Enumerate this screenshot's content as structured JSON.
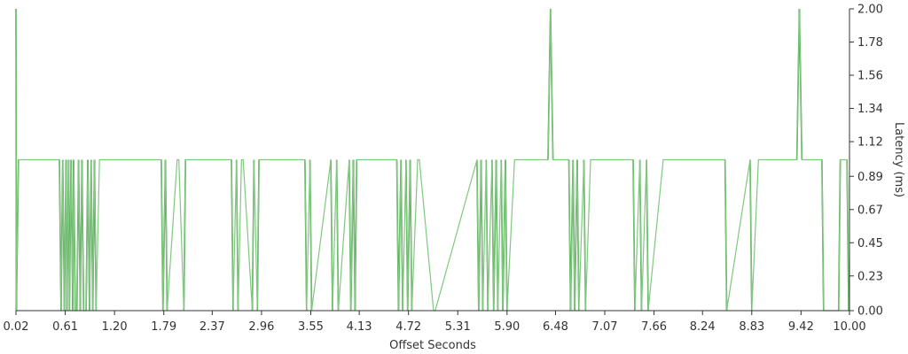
{
  "chart_data": {
    "type": "line",
    "title": "",
    "xlabel": "Offset Seconds",
    "ylabel": "Latency (ms)",
    "xlim": [
      0.02,
      10.0
    ],
    "ylim": [
      0.0,
      2.0
    ],
    "x_ticks": [
      "0.02",
      "0.61",
      "1.20",
      "1.79",
      "2.37",
      "2.96",
      "3.55",
      "4.13",
      "4.72",
      "5.31",
      "5.90",
      "6.48",
      "7.07",
      "7.66",
      "8.24",
      "8.83",
      "9.42",
      "10.00"
    ],
    "y_ticks": [
      "0.00",
      "0.23",
      "0.45",
      "0.67",
      "0.89",
      "1.12",
      "1.34",
      "1.56",
      "1.78",
      "2.00"
    ],
    "y_axis_side": "right",
    "grid": false,
    "legend": "none",
    "colors": {
      "line": "#7fc97f",
      "spike": "#2e8b2e",
      "axis": "#333333"
    },
    "series": [
      {
        "x": [
          0.02,
          0.025,
          0.05,
          0.08,
          0.54,
          0.56,
          0.58,
          0.6,
          0.62,
          0.63,
          0.65,
          0.66,
          0.68,
          0.7,
          0.71,
          0.73,
          0.75,
          0.77,
          0.79,
          0.81,
          0.83,
          0.86,
          0.88,
          0.9,
          0.92,
          0.94,
          0.96,
          0.98,
          1.02,
          1.76,
          1.78,
          1.81,
          1.83,
          1.95,
          1.97,
          2.03,
          2.05,
          2.6,
          2.62,
          2.66,
          2.68,
          2.72,
          2.74,
          2.85,
          2.87,
          2.91,
          2.93,
          3.48,
          3.5,
          3.54,
          3.56,
          3.79,
          3.81,
          3.86,
          3.88,
          4.01,
          4.03,
          4.06,
          4.08,
          4.1,
          4.12,
          4.58,
          4.6,
          4.63,
          4.65,
          4.69,
          4.71,
          4.74,
          4.76,
          4.83,
          4.85,
          5.02,
          5.04,
          5.54,
          5.56,
          5.59,
          5.61,
          5.65,
          5.67,
          5.72,
          5.74,
          5.77,
          5.79,
          5.83,
          5.85,
          5.88,
          5.9,
          5.99,
          6.01,
          6.39,
          6.42,
          6.45,
          6.64,
          6.66,
          6.69,
          6.71,
          6.74,
          6.76,
          6.82,
          6.84,
          6.9,
          6.92,
          7.41,
          7.43,
          7.49,
          7.51,
          7.57,
          7.59,
          7.77,
          7.79,
          8.51,
          8.53,
          8.81,
          8.83,
          8.91,
          8.93,
          9.37,
          9.4,
          9.43,
          9.67,
          9.69,
          9.87,
          9.89,
          9.97,
          9.99,
          10.0
        ],
        "y": [
          2.0,
          0.0,
          1.0,
          1.0,
          1.0,
          0.0,
          1.0,
          0.0,
          1.0,
          0.0,
          1.0,
          0.0,
          1.0,
          0.0,
          1.0,
          0.0,
          0.0,
          1.0,
          0.0,
          1.0,
          0.0,
          0.0,
          1.0,
          0.0,
          1.0,
          0.0,
          1.0,
          0.0,
          1.0,
          1.0,
          0.0,
          1.0,
          0.0,
          1.0,
          1.0,
          0.0,
          1.0,
          1.0,
          0.0,
          1.0,
          0.0,
          1.0,
          1.0,
          0.0,
          1.0,
          0.0,
          1.0,
          1.0,
          0.0,
          1.0,
          0.0,
          1.0,
          0.0,
          1.0,
          0.0,
          1.0,
          0.0,
          1.0,
          0.0,
          1.0,
          1.0,
          1.0,
          0.0,
          1.0,
          0.0,
          1.0,
          0.0,
          1.0,
          0.0,
          1.0,
          1.0,
          0.0,
          0.0,
          1.0,
          0.0,
          1.0,
          0.0,
          1.0,
          0.0,
          1.0,
          0.0,
          1.0,
          0.0,
          1.0,
          0.0,
          1.0,
          0.0,
          1.0,
          1.0,
          1.0,
          2.0,
          1.0,
          1.0,
          0.0,
          1.0,
          0.0,
          1.0,
          0.0,
          1.0,
          0.0,
          1.0,
          1.0,
          1.0,
          0.0,
          1.0,
          0.0,
          1.0,
          0.0,
          1.0,
          1.0,
          1.0,
          0.0,
          1.0,
          0.0,
          1.0,
          1.0,
          1.0,
          2.0,
          1.0,
          1.0,
          0.0,
          0.0,
          1.0,
          1.0,
          0.0,
          0.0
        ]
      }
    ]
  }
}
